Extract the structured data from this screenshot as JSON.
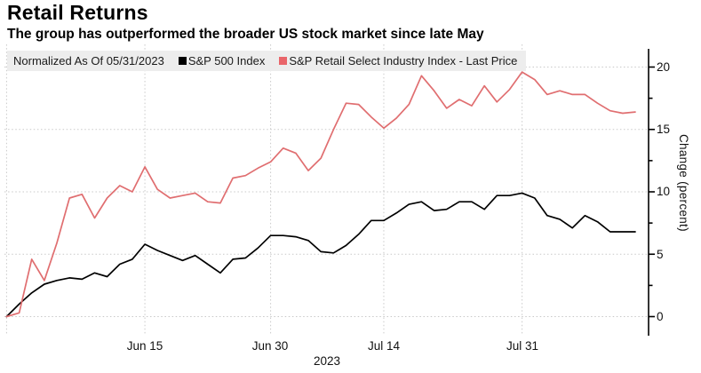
{
  "header": {
    "title": "Retail Returns",
    "subtitle": "The group has outperformed the broader US stock market since late May"
  },
  "legend": {
    "note": "Normalized As Of 05/31/2023",
    "items": [
      {
        "label": "S&P 500 Index",
        "color": "#000000"
      },
      {
        "label": "S&P Retail Select Industry Index - Last Price",
        "color": "#e9656a"
      }
    ]
  },
  "axes": {
    "y_title": "Change (percent)",
    "y_tick_labels": [
      "20",
      "15",
      "10",
      "5",
      "0"
    ],
    "x_tick_labels": [
      "Jun 15",
      "Jun 30",
      "Jul 14",
      "Jul 31"
    ],
    "x_year_label": "2023"
  },
  "colors": {
    "background": "#ffffff",
    "legend_background": "#ededed",
    "gridline": "#c9c9c9",
    "axis": "#000000",
    "sp500_line": "#000000",
    "retail_line": "#e06e70"
  },
  "chart_data": {
    "type": "line",
    "title": "Retail Returns",
    "subtitle": "The group has outperformed the broader US stock market since late May",
    "note": "Normalized As Of 05/31/2023",
    "ylabel": "Change (percent)",
    "ylim": [
      0,
      20
    ],
    "yticks": [
      0,
      5,
      10,
      15,
      20
    ],
    "minor_yticks": [
      2.5,
      7.5,
      12.5,
      17.5
    ],
    "grid": "dotted",
    "legend_position": "top",
    "x_gridline_indices": [
      0,
      11,
      21,
      30,
      41
    ],
    "x_tick_label_indices": [
      11,
      21,
      30,
      41
    ],
    "x": [
      "May 31",
      "Jun 1",
      "Jun 2",
      "Jun 5",
      "Jun 6",
      "Jun 7",
      "Jun 8",
      "Jun 9",
      "Jun 12",
      "Jun 13",
      "Jun 14",
      "Jun 15",
      "Jun 16",
      "Jun 20",
      "Jun 21",
      "Jun 22",
      "Jun 23",
      "Jun 26",
      "Jun 27",
      "Jun 28",
      "Jun 29",
      "Jun 30",
      "Jul 3",
      "Jul 5",
      "Jul 6",
      "Jul 7",
      "Jul 10",
      "Jul 11",
      "Jul 12",
      "Jul 13",
      "Jul 14",
      "Jul 17",
      "Jul 18",
      "Jul 19",
      "Jul 20",
      "Jul 21",
      "Jul 24",
      "Jul 25",
      "Jul 26",
      "Jul 27",
      "Jul 28",
      "Jul 31",
      "Aug 1",
      "Aug 2",
      "Aug 3",
      "Aug 4",
      "Aug 7",
      "Aug 8",
      "Aug 9",
      "Aug 10",
      "Aug 11"
    ],
    "series": [
      {
        "name": "S&P 500 Index",
        "color": "#000000",
        "values": [
          0,
          1.0,
          1.9,
          2.6,
          2.9,
          3.1,
          3.0,
          3.5,
          3.2,
          4.2,
          4.6,
          5.8,
          5.3,
          4.9,
          4.5,
          4.9,
          4.2,
          3.5,
          4.6,
          4.7,
          5.5,
          6.5,
          6.5,
          6.4,
          6.1,
          5.2,
          5.1,
          5.7,
          6.6,
          7.7,
          7.7,
          8.3,
          9.0,
          9.2,
          8.5,
          8.6,
          9.2,
          9.2,
          8.6,
          9.7,
          9.7,
          9.9,
          9.5,
          8.1,
          7.8,
          7.1,
          8.1,
          7.6,
          6.8,
          6.8,
          6.8
        ]
      },
      {
        "name": "S&P Retail Select Industry Index - Last Price",
        "color": "#e06e70",
        "values": [
          0,
          0.3,
          4.6,
          2.9,
          5.9,
          9.5,
          9.8,
          7.9,
          9.5,
          10.5,
          10.0,
          12.0,
          10.2,
          9.5,
          9.7,
          9.9,
          9.2,
          9.1,
          11.1,
          11.3,
          11.9,
          12.4,
          13.5,
          13.1,
          11.7,
          12.7,
          15.0,
          17.1,
          17.0,
          16.0,
          15.1,
          15.9,
          17.0,
          19.3,
          18.1,
          16.7,
          17.4,
          16.9,
          18.5,
          17.2,
          18.2,
          19.6,
          19.0,
          17.8,
          18.1,
          17.8,
          17.8,
          17.1,
          16.5,
          16.3,
          16.4
        ]
      }
    ]
  }
}
